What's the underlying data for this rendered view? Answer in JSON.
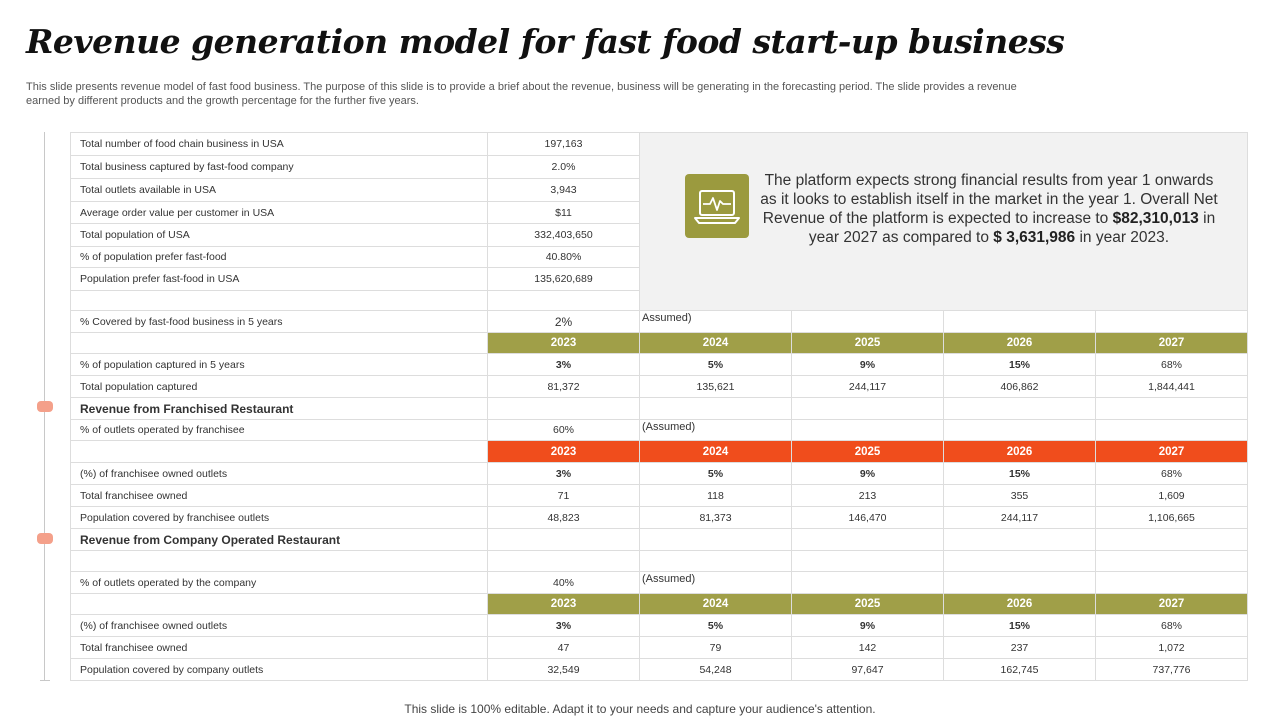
{
  "title": "Revenue generation model for fast food start-up business",
  "subtitle": "This slide presents revenue model of fast food business. The purpose of this slide is to provide a brief about the revenue, business will be generating in the forecasting period. The slide provides a revenue earned by different products and the growth percentage for the further five years.",
  "footer": "This slide is 100% editable. Adapt it to your needs and capture your audience's attention.",
  "info": {
    "icon": "monitor-heartbeat-icon",
    "text1": "The platform expects strong financial results from year 1 onwards as it looks to establish itself in the market in the year 1. Overall Net Revenue of the platform is expected to increase to ",
    "value1": "$82,310,013",
    "text2": " in year 2027 as compared to ",
    "value2": "$ 3,631,986",
    "text3": " in year 2023."
  },
  "base": [
    {
      "label": "Total number of food chain business in USA",
      "value": "197,163"
    },
    {
      "label": "Total business captured by fast-food company",
      "value": "2.0%"
    },
    {
      "label": "Total outlets available in USA",
      "value": "3,943"
    },
    {
      "label": "Average order value per customer in USA",
      "value": "$11"
    },
    {
      "label": "Total population of USA",
      "value": "332,403,650"
    },
    {
      "label": "% of population prefer fast-food",
      "value": "40.80%"
    },
    {
      "label": "Population prefer fast-food in USA",
      "value": "135,620,689"
    }
  ],
  "coverage": {
    "label": "% Covered by fast-food business in 5 years",
    "value": "2%",
    "note": "Assumed)"
  },
  "years": [
    "2023",
    "2024",
    "2025",
    "2026",
    "2027"
  ],
  "population_rows": [
    {
      "label": "% of population captured in 5 years",
      "values": [
        "3%",
        "5%",
        "9%",
        "15%",
        "68%"
      ]
    },
    {
      "label": "Total population captured",
      "values": [
        "81,372",
        "135,621",
        "244,117",
        "406,862",
        "1,844,441"
      ]
    }
  ],
  "franchised": {
    "title": "Revenue from Franchised Restaurant",
    "assumption": {
      "label": "% of outlets operated by franchisee",
      "value": "60%",
      "note": "(Assumed)"
    },
    "rows": [
      {
        "label": "(%) of franchisee owned outlets",
        "values": [
          "3%",
          "5%",
          "9%",
          "15%",
          "68%"
        ]
      },
      {
        "label": "Total franchisee owned",
        "values": [
          "71",
          "118",
          "213",
          "355",
          "1,609"
        ]
      },
      {
        "label": "Population covered by franchisee outlets",
        "values": [
          "48,823",
          "81,373",
          "146,470",
          "244,117",
          "1,106,665"
        ]
      }
    ]
  },
  "company": {
    "title": "Revenue from Company Operated Restaurant",
    "assumption": {
      "label": "% of outlets operated by the company",
      "value": "40%",
      "note": "(Assumed)"
    },
    "rows": [
      {
        "label": "(%) of franchisee owned outlets",
        "values": [
          "3%",
          "5%",
          "9%",
          "15%",
          "68%"
        ]
      },
      {
        "label": "Total franchisee owned",
        "values": [
          "47",
          "79",
          "142",
          "237",
          "1,072"
        ]
      },
      {
        "label": "Population covered by company outlets",
        "values": [
          "32,549",
          "54,248",
          "97,647",
          "162,745",
          "737,776"
        ]
      }
    ]
  },
  "colors": {
    "olive": "#a09f48",
    "orange": "#f04d1c",
    "marker": "#f4a08a",
    "panel": "#f2f2f2"
  }
}
